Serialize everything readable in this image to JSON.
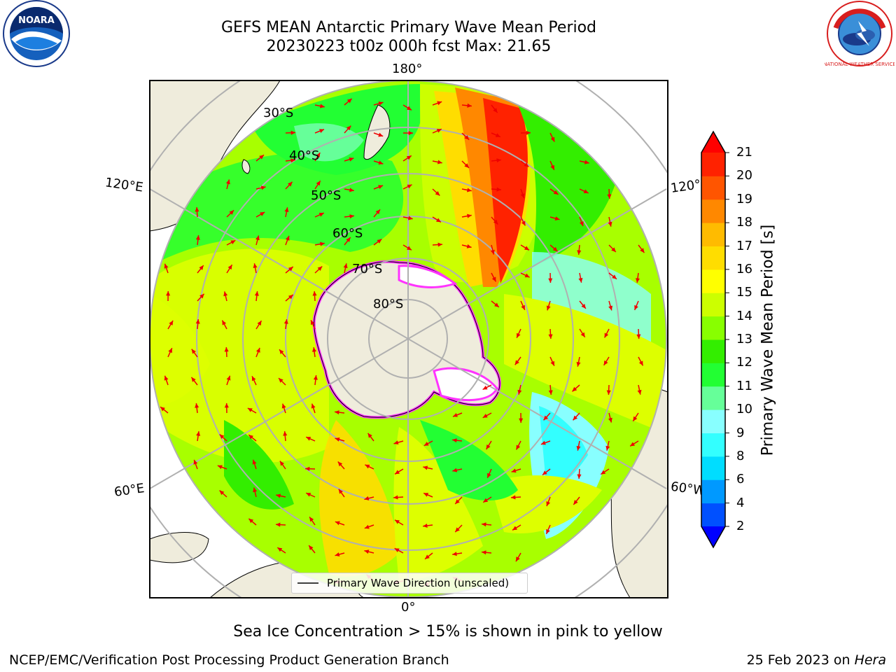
{
  "header": {
    "title_line1": "GEFS MEAN Antarctic Primary Wave Mean Period",
    "title_line2": "20230223 t00z 000h fcst   Max: 21.65"
  },
  "logos": {
    "left": {
      "text": "NOARA"
    },
    "right": {
      "text": "NATIONAL WEATHER SERVICE"
    }
  },
  "map": {
    "longitude_labels": [
      "180°",
      "120°E",
      "120°",
      "60°E",
      "60°W",
      "0°"
    ],
    "latitude_labels": [
      "30°S",
      "40°S",
      "50°S",
      "60°S",
      "70°S",
      "80°S"
    ],
    "legend_label": "Primary Wave Direction (unscaled)",
    "colors": {
      "land": "#efecdc",
      "ocean_base": "#a5ff00",
      "arrow": "#ee0000",
      "sea_ice": "#ff33ff",
      "grid": "#b0b0b0"
    }
  },
  "colorbar": {
    "label": "Primary Wave Mean Period [s]",
    "ticks": [
      "2",
      "4",
      "6",
      "8",
      "9",
      "10",
      "11",
      "12",
      "13",
      "14",
      "15",
      "16",
      "17",
      "18",
      "19",
      "20",
      "21"
    ],
    "colors": [
      "#0050ff",
      "#0099ff",
      "#00ddff",
      "#33ffff",
      "#88ffff",
      "#66ff99",
      "#22ff33",
      "#33ee00",
      "#88ff00",
      "#ccff00",
      "#ffff00",
      "#ffdd00",
      "#ffbb00",
      "#ff8800",
      "#ff5500",
      "#ff2200"
    ],
    "min_color": "#0000ff",
    "max_color": "#ff0000"
  },
  "annotation": "Sea Ice Concentration > 15% is shown in pink to yellow",
  "footer": {
    "left": "NCEP/EMC/Verification Post Processing Product Generation Branch",
    "right_date": "25 Feb 2023 on ",
    "right_host": "Hera"
  }
}
